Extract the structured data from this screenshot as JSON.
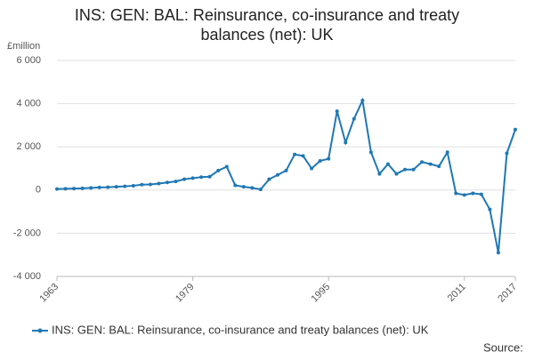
{
  "chart_data": {
    "type": "line",
    "title": "INS: GEN: BAL: Reinsurance, co-insurance and treaty balances (net): UK",
    "y_label": "£million",
    "source": "Source:",
    "x": [
      1963,
      1964,
      1965,
      1966,
      1967,
      1968,
      1969,
      1970,
      1971,
      1972,
      1973,
      1974,
      1975,
      1976,
      1977,
      1978,
      1979,
      1980,
      1981,
      1982,
      1983,
      1984,
      1985,
      1986,
      1987,
      1988,
      1989,
      1990,
      1991,
      1992,
      1993,
      1994,
      1995,
      1996,
      1997,
      1998,
      1999,
      2000,
      2001,
      2002,
      2003,
      2004,
      2005,
      2006,
      2007,
      2008,
      2009,
      2010,
      2011,
      2012,
      2013,
      2014,
      2015,
      2016,
      2017
    ],
    "series": [
      {
        "name": "INS: GEN: BAL: Reinsurance, co-insurance and treaty balances (net): UK",
        "color": "#1f78b4",
        "values": [
          50,
          60,
          70,
          80,
          100,
          120,
          130,
          150,
          170,
          200,
          250,
          260,
          300,
          350,
          400,
          500,
          550,
          600,
          620,
          900,
          1080,
          220,
          150,
          100,
          30,
          500,
          700,
          900,
          1650,
          1580,
          1000,
          1350,
          1450,
          3650,
          2200,
          3300,
          4150,
          1750,
          750,
          1200,
          750,
          950,
          950,
          1300,
          1200,
          1100,
          1750,
          -150,
          -230,
          -150,
          -200,
          -900,
          -2900,
          1700,
          2800
        ]
      }
    ],
    "xlim": [
      1963,
      2017
    ],
    "xticks": [
      1963,
      1979,
      1995,
      2011,
      2017
    ],
    "ylim": [
      -4000,
      6000
    ],
    "yticks": [
      {
        "value": -4000,
        "label": "-4 000"
      },
      {
        "value": -2000,
        "label": "-2 000"
      },
      0,
      {
        "value": 2000,
        "label": "2 000"
      },
      {
        "value": 4000,
        "label": "4 000"
      },
      {
        "value": 6000,
        "label": "6 000"
      }
    ],
    "grid": true
  }
}
